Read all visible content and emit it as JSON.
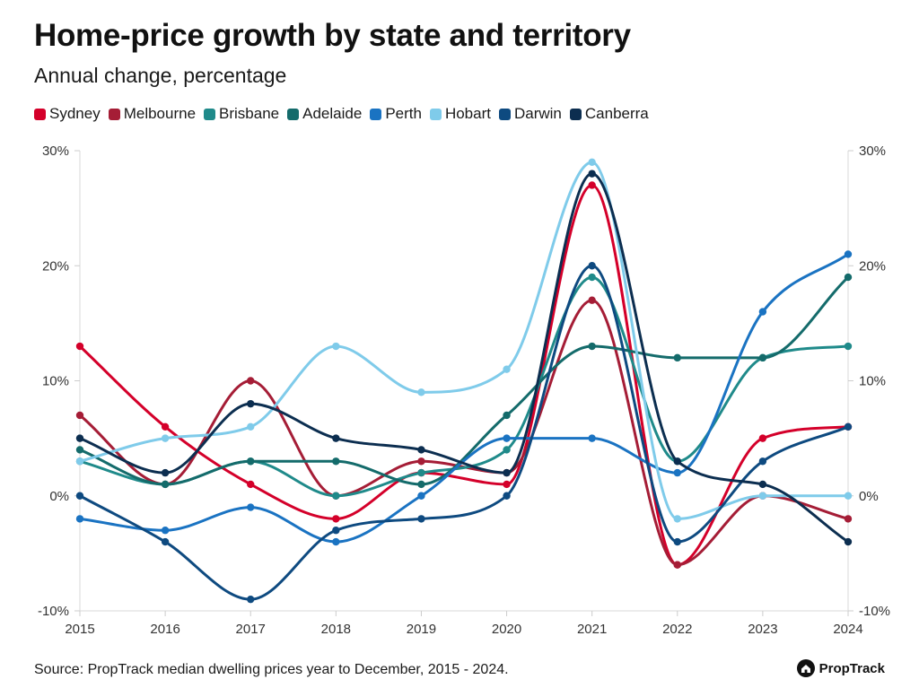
{
  "header": {
    "title": "Home-price growth by state and territory",
    "subtitle": "Annual change, percentage"
  },
  "footer": {
    "source": "Source: PropTrack median dwelling prices year to December, 2015 - 2024.",
    "brand": "PropTrack",
    "brand_icon": "house-logo-icon"
  },
  "chart_data": {
    "type": "line",
    "x": [
      2015,
      2016,
      2017,
      2018,
      2019,
      2020,
      2021,
      2022,
      2023,
      2024
    ],
    "ylim": [
      -10,
      30
    ],
    "yticks": [
      -10,
      0,
      10,
      20,
      30
    ],
    "ytick_labels": [
      "-10%",
      "0%",
      "10%",
      "20%",
      "30%"
    ],
    "xtick_labels": [
      "2015",
      "2016",
      "2017",
      "2018",
      "2019",
      "2020",
      "2021",
      "2022",
      "2023",
      "2024"
    ],
    "legend_position": "top-left",
    "grid": "none",
    "series": [
      {
        "name": "Sydney",
        "color": "#d4002a",
        "values": [
          13,
          6,
          1,
          -2,
          2,
          1,
          27,
          -6,
          5,
          6
        ]
      },
      {
        "name": "Melbourne",
        "color": "#a51d36",
        "values": [
          7,
          1,
          10,
          0,
          3,
          2,
          17,
          -6,
          0,
          -2
        ]
      },
      {
        "name": "Brisbane",
        "color": "#1f8a8a",
        "values": [
          3,
          1,
          3,
          0,
          2,
          4,
          19,
          3,
          12,
          13
        ]
      },
      {
        "name": "Adelaide",
        "color": "#146b6b",
        "values": [
          4,
          1,
          3,
          3,
          1,
          7,
          13,
          12,
          12,
          19
        ]
      },
      {
        "name": "Perth",
        "color": "#1a73c2",
        "values": [
          -2,
          -3,
          -1,
          -4,
          0,
          5,
          5,
          2,
          16,
          21
        ]
      },
      {
        "name": "Hobart",
        "color": "#7fcbea",
        "values": [
          3,
          5,
          6,
          13,
          9,
          11,
          29,
          -2,
          0,
          0
        ]
      },
      {
        "name": "Darwin",
        "color": "#0e4a80",
        "values": [
          0,
          -4,
          -9,
          -3,
          -2,
          0,
          20,
          -4,
          3,
          6
        ]
      },
      {
        "name": "Canberra",
        "color": "#0c2e50",
        "values": [
          5,
          2,
          8,
          5,
          4,
          2,
          28,
          3,
          1,
          -4
        ]
      }
    ]
  }
}
